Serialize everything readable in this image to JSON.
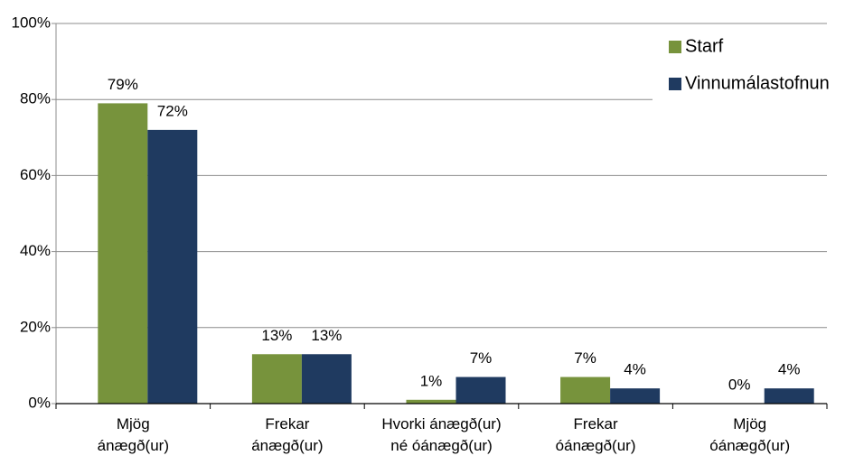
{
  "chart_data": {
    "type": "bar",
    "categories": [
      "Mjög\nánægð(ur)",
      "Frekar\nánægð(ur)",
      "Hvorki ánægð(ur)\nné óánægð(ur)",
      "Frekar\nóánægð(ur)",
      "Mjög\nóánægð(ur)"
    ],
    "series": [
      {
        "name": "Starf",
        "color": "#77933c",
        "values": [
          79,
          13,
          1,
          7,
          0
        ],
        "value_labels": [
          "79%",
          "13%",
          "1%",
          "7%",
          "0%"
        ]
      },
      {
        "name": "Vinnumálastofnun",
        "color": "#1f3a60",
        "values": [
          72,
          13,
          7,
          4,
          4
        ],
        "value_labels": [
          "72%",
          "13%",
          "7%",
          "4%",
          "4%"
        ]
      }
    ],
    "ylim": [
      0,
      100
    ],
    "yticks": [
      {
        "value": 0,
        "label": "0%"
      },
      {
        "value": 20,
        "label": "20%"
      },
      {
        "value": 40,
        "label": "40%"
      },
      {
        "value": 60,
        "label": "60%"
      },
      {
        "value": 80,
        "label": "80%"
      },
      {
        "value": 100,
        "label": "100%"
      }
    ],
    "grid": true,
    "legend": "top-right"
  }
}
